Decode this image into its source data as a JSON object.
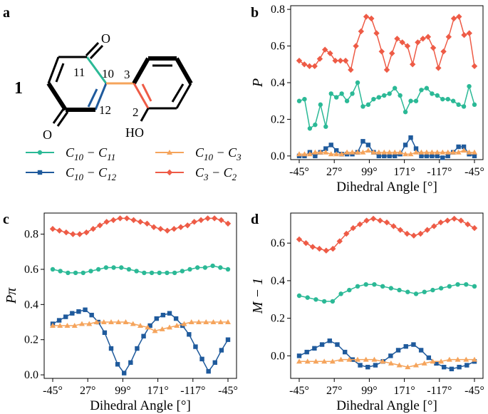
{
  "figure": {
    "panel_labels": [
      "a",
      "b",
      "c",
      "d"
    ],
    "molecule": {
      "compound_label": "1",
      "atom_labels": {
        "o_top": "O",
        "o_bottom": "O",
        "ho": "HO",
        "c11": "11",
        "c10": "10",
        "c12": "12",
        "c3": "3",
        "c2": "2"
      }
    },
    "legend": {
      "entries": [
        {
          "key": "c10_c11",
          "pre": "C",
          "sub1": "10",
          "mid": " − C",
          "sub2": "11"
        },
        {
          "key": "c10_c3",
          "pre": "C",
          "sub1": "10",
          "mid": " − C",
          "sub2": "3"
        },
        {
          "key": "c10_c12",
          "pre": "C",
          "sub1": "10",
          "mid": " − C",
          "sub2": "12"
        },
        {
          "key": "c3_c2",
          "pre": "C",
          "sub1": "3",
          "mid": " − C",
          "sub2": "2"
        }
      ]
    }
  },
  "colors": {
    "c10_c11": "#2bb996",
    "c10_c12": "#1f5a9c",
    "c10_c3": "#f5a45c",
    "c3_c2": "#ee5b46",
    "bond": "#000000"
  },
  "chart_data": [
    {
      "panel": "b",
      "type": "line",
      "xlabel": "Dihedral Angle [°]",
      "ylabel": "P",
      "xtick_labels": [
        "-45°",
        "27°",
        "99°",
        "171°",
        "-117°",
        "-45°"
      ],
      "ylim": [
        -0.02,
        0.82
      ],
      "yticks": [
        0.0,
        0.2,
        0.4,
        0.6,
        0.8
      ],
      "series": [
        {
          "key": "c3_c2",
          "marker": "diamond",
          "values": [
            0.52,
            0.5,
            0.49,
            0.49,
            0.53,
            0.58,
            0.56,
            0.52,
            0.52,
            0.52,
            0.47,
            0.6,
            0.68,
            0.76,
            0.75,
            0.67,
            0.57,
            0.47,
            0.56,
            0.64,
            0.62,
            0.6,
            0.5,
            0.62,
            0.64,
            0.65,
            0.59,
            0.48,
            0.57,
            0.65,
            0.75,
            0.76,
            0.66,
            0.67,
            0.49
          ]
        },
        {
          "key": "c10_c11",
          "marker": "circle",
          "values": [
            0.3,
            0.31,
            0.15,
            0.17,
            0.28,
            0.16,
            0.34,
            0.32,
            0.34,
            0.3,
            0.34,
            0.4,
            0.27,
            0.28,
            0.31,
            0.32,
            0.33,
            0.34,
            0.37,
            0.33,
            0.24,
            0.3,
            0.3,
            0.36,
            0.37,
            0.34,
            0.33,
            0.31,
            0.31,
            0.3,
            0.28,
            0.27,
            0.38,
            0.28
          ]
        },
        {
          "key": "c10_c12",
          "marker": "square",
          "values": [
            0.0,
            0.0,
            0.02,
            0.0,
            0.02,
            0.04,
            0.06,
            0.03,
            0.01,
            0.01,
            0.01,
            0.02,
            0.08,
            0.06,
            0.02,
            0.0,
            0.0,
            0.0,
            0.0,
            0.01,
            0.06,
            0.1,
            0.04,
            0.0,
            0.0,
            0.0,
            0.0,
            -0.01,
            0.0,
            0.02,
            0.05,
            0.05,
            0.01,
            0.0
          ]
        },
        {
          "key": "c10_c3",
          "marker": "triangle",
          "values": [
            0.01,
            0.01,
            0.01,
            0.02,
            0.02,
            0.02,
            0.01,
            0.01,
            0.01,
            0.02,
            0.02,
            0.02,
            0.02,
            0.03,
            0.02,
            0.02,
            0.02,
            0.02,
            0.02,
            0.02,
            0.01,
            0.01,
            0.02,
            0.02,
            0.02,
            0.02,
            0.02,
            0.02,
            0.02,
            0.02,
            0.02,
            0.03,
            0.02,
            0.02
          ]
        }
      ]
    },
    {
      "panel": "c",
      "type": "line",
      "xlabel": "Dihedral Angle [°]",
      "ylabel": "Pπ",
      "xtick_labels": [
        "-45°",
        "27°",
        "99°",
        "171°",
        "-117°",
        "-45°"
      ],
      "ylim": [
        -0.02,
        0.92
      ],
      "yticks": [
        0.0,
        0.2,
        0.4,
        0.6,
        0.8
      ],
      "series": [
        {
          "key": "c3_c2",
          "marker": "diamond",
          "values": [
            0.83,
            0.82,
            0.81,
            0.8,
            0.8,
            0.81,
            0.83,
            0.85,
            0.87,
            0.88,
            0.89,
            0.89,
            0.88,
            0.87,
            0.86,
            0.84,
            0.83,
            0.82,
            0.83,
            0.84,
            0.85,
            0.87,
            0.88,
            0.89,
            0.89,
            0.88,
            0.86
          ]
        },
        {
          "key": "c10_c11",
          "marker": "circle",
          "values": [
            0.6,
            0.59,
            0.58,
            0.58,
            0.58,
            0.59,
            0.6,
            0.61,
            0.61,
            0.61,
            0.6,
            0.59,
            0.58,
            0.58,
            0.58,
            0.58,
            0.58,
            0.59,
            0.6,
            0.61,
            0.61,
            0.62,
            0.61,
            0.6
          ]
        },
        {
          "key": "c10_c12",
          "marker": "square",
          "values": [
            0.29,
            0.31,
            0.33,
            0.35,
            0.36,
            0.37,
            0.34,
            0.3,
            0.24,
            0.15,
            0.06,
            0.01,
            0.07,
            0.15,
            0.22,
            0.28,
            0.32,
            0.34,
            0.35,
            0.32,
            0.28,
            0.23,
            0.16,
            0.09,
            0.02,
            0.07,
            0.14,
            0.2
          ]
        },
        {
          "key": "c10_c3",
          "marker": "triangle",
          "values": [
            0.28,
            0.28,
            0.28,
            0.28,
            0.29,
            0.29,
            0.3,
            0.3,
            0.3,
            0.3,
            0.3,
            0.29,
            0.28,
            0.27,
            0.25,
            0.26,
            0.27,
            0.28,
            0.29,
            0.3,
            0.3,
            0.3,
            0.3,
            0.3,
            0.3
          ]
        }
      ]
    },
    {
      "panel": "d",
      "type": "line",
      "xlabel": "Dihedral Angle [°]",
      "ylabel": "M − 1",
      "xtick_labels": [
        "-45°",
        "27°",
        "99°",
        "171°",
        "-117°",
        "-45°"
      ],
      "ylim": [
        -0.12,
        0.76
      ],
      "yticks": [
        0.0,
        0.2,
        0.4,
        0.6
      ],
      "series": [
        {
          "key": "c3_c2",
          "marker": "diamond",
          "values": [
            0.62,
            0.6,
            0.58,
            0.57,
            0.56,
            0.57,
            0.61,
            0.65,
            0.68,
            0.7,
            0.72,
            0.73,
            0.72,
            0.71,
            0.69,
            0.67,
            0.65,
            0.64,
            0.65,
            0.67,
            0.69,
            0.71,
            0.72,
            0.73,
            0.72,
            0.7,
            0.68
          ]
        },
        {
          "key": "c10_c11",
          "marker": "circle",
          "values": [
            0.32,
            0.31,
            0.3,
            0.29,
            0.29,
            0.33,
            0.35,
            0.37,
            0.38,
            0.38,
            0.37,
            0.36,
            0.35,
            0.34,
            0.33,
            0.34,
            0.35,
            0.36,
            0.37,
            0.38,
            0.38,
            0.37
          ]
        },
        {
          "key": "c10_c12",
          "marker": "square",
          "values": [
            0.0,
            0.02,
            0.04,
            0.06,
            0.08,
            0.06,
            0.02,
            -0.02,
            -0.05,
            -0.06,
            -0.05,
            -0.03,
            0.0,
            0.03,
            0.05,
            0.06,
            0.03,
            -0.01,
            -0.04,
            -0.06,
            -0.07,
            -0.06,
            -0.05,
            -0.03
          ]
        },
        {
          "key": "c10_c3",
          "marker": "triangle",
          "values": [
            -0.03,
            -0.03,
            -0.03,
            -0.03,
            -0.03,
            -0.02,
            -0.02,
            -0.02,
            -0.02,
            -0.02,
            -0.03,
            -0.04,
            -0.05,
            -0.06,
            -0.05,
            -0.04,
            -0.03,
            -0.03,
            -0.02,
            -0.02,
            -0.02,
            -0.02
          ]
        }
      ]
    }
  ]
}
